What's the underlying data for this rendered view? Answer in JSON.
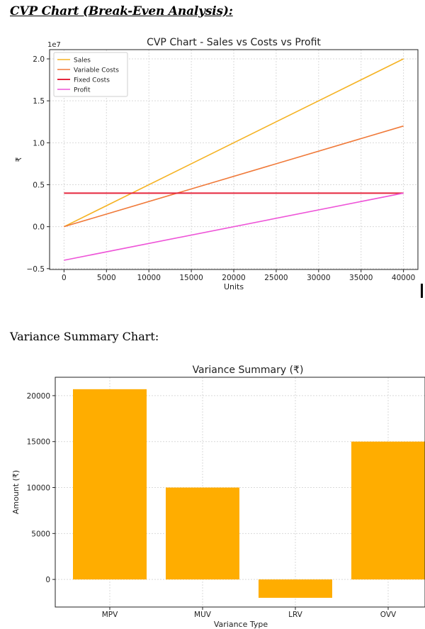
{
  "headings": {
    "cvp": "CVP Chart (Break-Even Analysis):",
    "variance": "Variance Summary Chart:"
  },
  "chart_data": [
    {
      "type": "line",
      "title": "CVP Chart - Sales vs Costs vs Profit",
      "xlabel": "Units",
      "ylabel": "₹",
      "y_scale_note": "1e7",
      "xlim": [
        -1700,
        41700
      ],
      "ylim": [
        -5100000,
        21100000
      ],
      "x_ticks": [
        0,
        5000,
        10000,
        15000,
        20000,
        25000,
        30000,
        35000,
        40000
      ],
      "y_ticks": [
        -5000000,
        0,
        5000000,
        10000000,
        15000000,
        20000000
      ],
      "y_tick_labels": [
        "−0.5",
        "0.0",
        "0.5",
        "1.0",
        "1.5",
        "2.0"
      ],
      "grid": true,
      "legend_position": "top-left",
      "series": [
        {
          "name": "Sales",
          "color": "#f5b324",
          "x": [
            0,
            40000
          ],
          "y": [
            0,
            20000000
          ]
        },
        {
          "name": "Variable Costs",
          "color": "#f07a3a",
          "x": [
            0,
            40000
          ],
          "y": [
            0,
            12000000
          ]
        },
        {
          "name": "Fixed Costs",
          "color": "#e5263d",
          "x": [
            0,
            40000
          ],
          "y": [
            4000000,
            4000000
          ]
        },
        {
          "name": "Profit",
          "color": "#ee55d8",
          "x": [
            0,
            40000
          ],
          "y": [
            -4000000,
            4000000
          ]
        }
      ]
    },
    {
      "type": "bar",
      "title": "Variance Summary (₹)",
      "xlabel": "Variance Type",
      "ylabel": "Amount (₹)",
      "categories": [
        "MPV",
        "MUV",
        "LRV",
        "OVV"
      ],
      "values": [
        20700,
        10000,
        -2000,
        15000
      ],
      "ylim": [
        -3000,
        22000
      ],
      "y_ticks": [
        0,
        5000,
        10000,
        15000,
        20000
      ],
      "bar_color": "#ffad00",
      "grid": true
    }
  ]
}
